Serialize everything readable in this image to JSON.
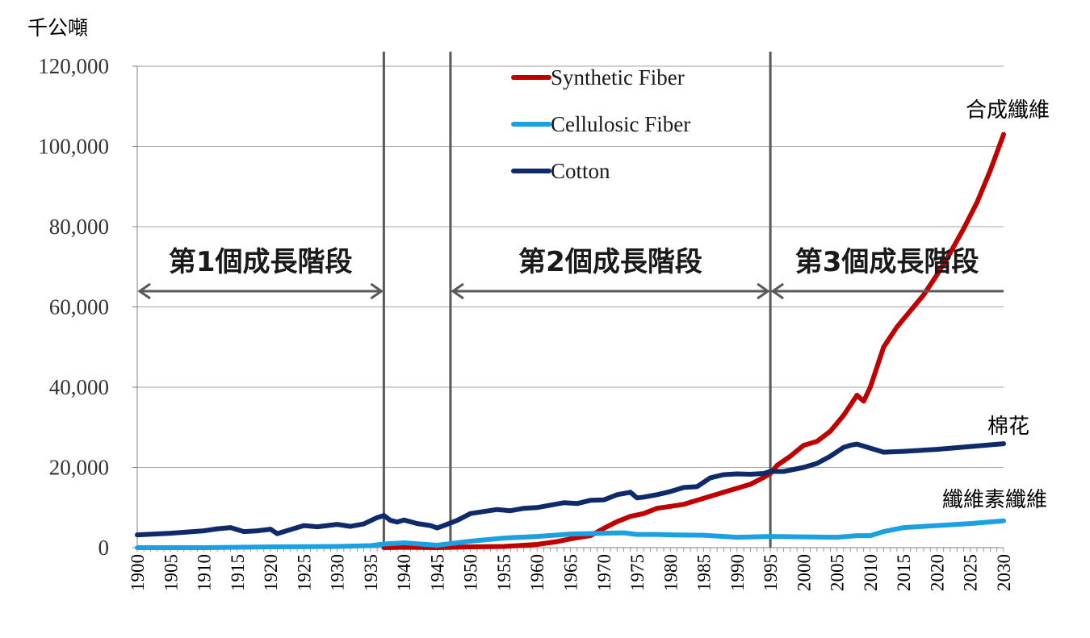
{
  "chart_data": {
    "type": "line",
    "ylabel": "千公噸",
    "ylim": [
      0,
      120000
    ],
    "yticks": [
      0,
      20000,
      40000,
      60000,
      80000,
      100000,
      120000
    ],
    "ytick_labels": [
      "0",
      "20,000",
      "40,000",
      "60,000",
      "80,000",
      "100,000",
      "120,000"
    ],
    "xlim": [
      1900,
      2030
    ],
    "xticks": [
      1900,
      1905,
      1910,
      1915,
      1920,
      1925,
      1930,
      1935,
      1940,
      1945,
      1950,
      1955,
      1960,
      1965,
      1970,
      1975,
      1980,
      1985,
      1990,
      1995,
      2000,
      2005,
      2010,
      2015,
      2020,
      2025,
      2030
    ],
    "xtick_labels": [
      "1900",
      "1905",
      "1910",
      "1915",
      "1920",
      "1925",
      "1930",
      "1935",
      "1940",
      "1945",
      "1950",
      "1955",
      "1960",
      "1965",
      "1970",
      "1975",
      "1980",
      "1985",
      "1990",
      "1995",
      "2000",
      "2005",
      "2010",
      "2015",
      "2020",
      "2025",
      "2030"
    ],
    "grid": "horizontal",
    "legend_position": "top-center",
    "series": [
      {
        "name": "Synthetic Fiber",
        "color": "#c00000",
        "end_label": "合成纖維",
        "x": [
          1937,
          1940,
          1945,
          1950,
          1955,
          1960,
          1963,
          1965,
          1968,
          1970,
          1972,
          1974,
          1976,
          1978,
          1980,
          1982,
          1984,
          1986,
          1988,
          1990,
          1992,
          1994,
          1995,
          1996,
          1998,
          2000,
          2002,
          2004,
          2006,
          2007,
          2008,
          2009,
          2010,
          2012,
          2014,
          2016,
          2018,
          2020,
          2022,
          2024,
          2026,
          2028,
          2030
        ],
        "y": [
          0,
          100,
          0,
          200,
          300,
          800,
          1500,
          2200,
          3000,
          4800,
          6500,
          7800,
          8500,
          9800,
          10300,
          10800,
          11800,
          12800,
          13800,
          14800,
          15800,
          17500,
          18500,
          20500,
          22800,
          25500,
          26500,
          29000,
          33000,
          35500,
          38000,
          36500,
          40000,
          50000,
          55000,
          59000,
          63000,
          68000,
          73500,
          79500,
          86000,
          94000,
          103000
        ]
      },
      {
        "name": "Cellulosic Fiber",
        "color": "#1ba1e2",
        "end_label": "纖維素纖維",
        "x": [
          1900,
          1910,
          1920,
          1930,
          1935,
          1937,
          1940,
          1945,
          1950,
          1955,
          1960,
          1965,
          1970,
          1973,
          1975,
          1978,
          1980,
          1985,
          1990,
          1995,
          2000,
          2005,
          2008,
          2010,
          2012,
          2015,
          2020,
          2025,
          2030
        ],
        "y": [
          0,
          0,
          200,
          300,
          500,
          900,
          1200,
          600,
          1600,
          2400,
          2800,
          3400,
          3600,
          3700,
          3300,
          3300,
          3200,
          3100,
          2600,
          2800,
          2700,
          2600,
          3000,
          3000,
          4000,
          5000,
          5500,
          6000,
          6700
        ]
      },
      {
        "name": "Cotton",
        "color": "#0e2a6b",
        "end_label": "棉花",
        "x": [
          1900,
          1905,
          1910,
          1912,
          1914,
          1916,
          1918,
          1920,
          1921,
          1923,
          1925,
          1927,
          1930,
          1932,
          1934,
          1936,
          1937,
          1938,
          1939,
          1940,
          1942,
          1944,
          1945,
          1946,
          1948,
          1950,
          1952,
          1954,
          1956,
          1958,
          1960,
          1962,
          1964,
          1966,
          1968,
          1970,
          1972,
          1974,
          1975,
          1976,
          1978,
          1980,
          1982,
          1984,
          1986,
          1988,
          1990,
          1992,
          1994,
          1995,
          1997,
          2000,
          2002,
          2004,
          2006,
          2007,
          2008,
          2010,
          2012,
          2015,
          2020,
          2025,
          2030
        ],
        "y": [
          3200,
          3600,
          4200,
          4700,
          5000,
          4000,
          4200,
          4600,
          3500,
          4500,
          5500,
          5200,
          5800,
          5300,
          5900,
          7500,
          8000,
          6800,
          6400,
          6900,
          6000,
          5500,
          4900,
          5500,
          6800,
          8500,
          9000,
          9500,
          9200,
          9800,
          10000,
          10600,
          11200,
          11000,
          11800,
          11900,
          13200,
          13800,
          12400,
          12600,
          13200,
          14000,
          15000,
          15200,
          17400,
          18200,
          18400,
          18300,
          18500,
          19000,
          19000,
          20000,
          21000,
          22800,
          25000,
          25500,
          25800,
          24800,
          23800,
          24000,
          24500,
          25200,
          25900
        ]
      }
    ],
    "phase_dividers": [
      1937,
      1947,
      1995
    ],
    "phases": [
      {
        "label": "第1個成長階段",
        "from": 1900,
        "to": 1937
      },
      {
        "label": "第2個成長階段",
        "from": 1947,
        "to": 1995
      },
      {
        "label": "第3個成長階段",
        "from": 1995,
        "to": 2030
      }
    ]
  }
}
